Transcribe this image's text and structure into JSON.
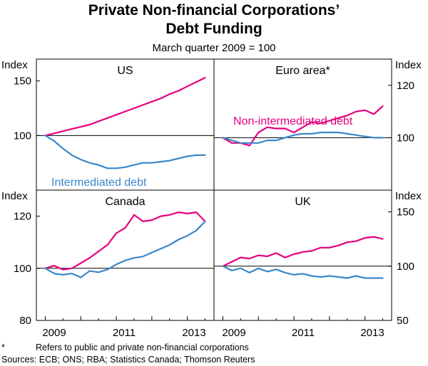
{
  "title_line1": "Private Non-financial Corporations’",
  "title_line2": "Debt Funding",
  "subtitle": "March quarter 2009 = 100",
  "axis_unit": "Index",
  "x_labels": [
    "2009",
    "2011",
    "2013"
  ],
  "series_colors": {
    "non_intermediated": "#e5007d",
    "intermediated": "#3a87c9"
  },
  "series_labels": {
    "non_intermediated": "Non-intermediated debt",
    "intermediated": "Intermediated debt"
  },
  "footnote_marker": "*",
  "footnote": "Refers to public and private non-financial corporations",
  "sources": "Sources: ECB; ONS; RBA; Statistics Canada; Thomson Reuters",
  "chart_data": [
    {
      "type": "line",
      "title": "US",
      "ylim": [
        50,
        170
      ],
      "yticks": [
        "150",
        "100"
      ],
      "xlim": [
        2008.75,
        2013.75
      ],
      "series": [
        {
          "name": "Non-intermediated debt",
          "x": [
            2009,
            2009.25,
            2009.5,
            2009.75,
            2010,
            2010.25,
            2010.5,
            2010.75,
            2011,
            2011.25,
            2011.5,
            2011.75,
            2012,
            2012.25,
            2012.5,
            2012.75,
            2013,
            2013.25,
            2013.5
          ],
          "values": [
            100,
            102,
            104,
            106,
            108,
            110,
            113,
            116,
            119,
            122,
            125,
            128,
            131,
            134,
            138,
            141,
            145,
            149,
            153
          ]
        },
        {
          "name": "Intermediated debt",
          "x": [
            2009,
            2009.25,
            2009.5,
            2009.75,
            2010,
            2010.25,
            2010.5,
            2010.75,
            2011,
            2011.25,
            2011.5,
            2011.75,
            2012,
            2012.25,
            2012.5,
            2012.75,
            2013,
            2013.25,
            2013.5
          ],
          "values": [
            100,
            95,
            88,
            82,
            78,
            75,
            73,
            70,
            70,
            71,
            73,
            75,
            75,
            76,
            77,
            79,
            81,
            82,
            82
          ]
        }
      ]
    },
    {
      "type": "line",
      "title": "Euro area*",
      "ylim": [
        80,
        130
      ],
      "yticks": [
        "120",
        "100"
      ],
      "xlim": [
        2008.75,
        2013.75
      ],
      "series": [
        {
          "name": "Non-intermediated debt",
          "x": [
            2009,
            2009.25,
            2009.5,
            2009.75,
            2010,
            2010.25,
            2010.5,
            2010.75,
            2011,
            2011.25,
            2011.5,
            2011.75,
            2012,
            2012.25,
            2012.5,
            2012.75,
            2013,
            2013.25,
            2013.5
          ],
          "values": [
            100,
            98,
            98,
            97,
            102,
            104,
            103.5,
            103.5,
            102,
            104,
            106,
            105.5,
            106.5,
            107.5,
            108.5,
            110,
            110.5,
            109,
            112
          ]
        },
        {
          "name": "Intermediated debt",
          "x": [
            2009,
            2009.25,
            2009.5,
            2009.75,
            2010,
            2010.25,
            2010.5,
            2010.75,
            2011,
            2011.25,
            2011.5,
            2011.75,
            2012,
            2012.25,
            2012.5,
            2012.75,
            2013,
            2013.25,
            2013.5
          ],
          "values": [
            100,
            99,
            98,
            98,
            98,
            99,
            99,
            100,
            101,
            101.5,
            101.5,
            102,
            102,
            102,
            101.5,
            101,
            100.5,
            100,
            100
          ]
        }
      ]
    },
    {
      "type": "line",
      "title": "Canada",
      "ylim": [
        80,
        130
      ],
      "yticks": [
        "120",
        "100",
        "80"
      ],
      "xlim": [
        2008.75,
        2013.75
      ],
      "series": [
        {
          "name": "Non-intermediated debt",
          "x": [
            2009,
            2009.25,
            2009.5,
            2009.75,
            2010,
            2010.25,
            2010.5,
            2010.75,
            2011,
            2011.25,
            2011.5,
            2011.75,
            2012,
            2012.25,
            2012.5,
            2012.75,
            2013,
            2013.25,
            2013.5
          ],
          "values": [
            100,
            101,
            99.5,
            100,
            102,
            104,
            106.5,
            109,
            113.5,
            115.5,
            120.5,
            118,
            118.5,
            120,
            120.5,
            121.5,
            121,
            121.5,
            118
          ]
        },
        {
          "name": "Intermediated debt",
          "x": [
            2009,
            2009.25,
            2009.5,
            2009.75,
            2010,
            2010.25,
            2010.5,
            2010.75,
            2011,
            2011.25,
            2011.5,
            2011.75,
            2012,
            2012.25,
            2012.5,
            2012.75,
            2013,
            2013.25,
            2013.5
          ],
          "values": [
            100,
            98,
            97.5,
            98,
            96.5,
            99,
            98.5,
            99.5,
            101.5,
            103,
            104,
            104.5,
            106,
            107.5,
            109,
            111,
            112.5,
            114.5,
            118
          ]
        }
      ]
    },
    {
      "type": "line",
      "title": "UK",
      "ylim": [
        50,
        170
      ],
      "yticks": [
        "150",
        "100",
        "50"
      ],
      "xlim": [
        2008.75,
        2013.75
      ],
      "series": [
        {
          "name": "Non-intermediated debt",
          "x": [
            2009,
            2009.25,
            2009.5,
            2009.75,
            2010,
            2010.25,
            2010.5,
            2010.75,
            2011,
            2011.25,
            2011.5,
            2011.75,
            2012,
            2012.25,
            2012.5,
            2012.75,
            2013,
            2013.25,
            2013.5
          ],
          "values": [
            100,
            104,
            108,
            107,
            110,
            109,
            112,
            108,
            111,
            113,
            114,
            117,
            117,
            119,
            122,
            123,
            126,
            127,
            125
          ]
        },
        {
          "name": "Intermediated debt",
          "x": [
            2009,
            2009.25,
            2009.5,
            2009.75,
            2010,
            2010.25,
            2010.5,
            2010.75,
            2011,
            2011.25,
            2011.5,
            2011.75,
            2012,
            2012.25,
            2012.5,
            2012.75,
            2013,
            2013.25,
            2013.5
          ],
          "values": [
            100,
            96,
            98,
            94,
            98,
            95,
            97,
            94,
            92,
            93,
            91,
            90,
            91,
            90,
            89,
            91,
            89,
            89,
            89
          ]
        }
      ]
    }
  ]
}
